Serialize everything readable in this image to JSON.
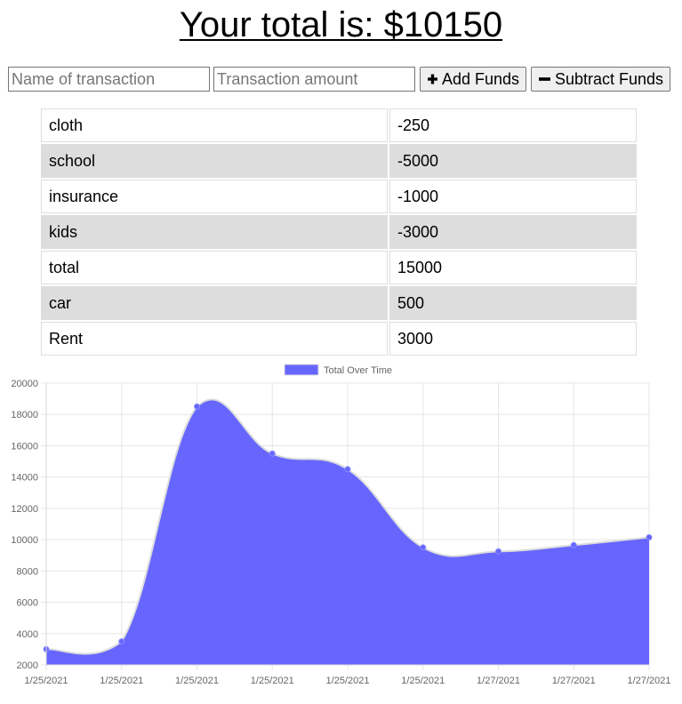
{
  "header": {
    "total_text": "Your total is: $10150"
  },
  "form": {
    "name_placeholder": "Name of transaction",
    "amount_placeholder": "Transaction amount",
    "add_label": "Add Funds",
    "subtract_label": "Subtract Funds",
    "add_icon": "plus-icon",
    "subtract_icon": "minus-icon"
  },
  "transactions": [
    {
      "name": "cloth",
      "value": "-250"
    },
    {
      "name": "school",
      "value": "-5000"
    },
    {
      "name": "insurance",
      "value": "-1000"
    },
    {
      "name": "kids",
      "value": "-3000"
    },
    {
      "name": "total",
      "value": "15000"
    },
    {
      "name": "car",
      "value": "500"
    },
    {
      "name": "Rent",
      "value": "3000"
    }
  ],
  "colors": {
    "row_stripe": "#dddddd",
    "series_fill": "#6666ff",
    "series_border": "#dcdcdc"
  },
  "chart_data": {
    "type": "area",
    "x": [
      "1/25/2021",
      "1/25/2021",
      "1/25/2021",
      "1/25/2021",
      "1/25/2021",
      "1/25/2021",
      "1/27/2021",
      "1/27/2021",
      "1/27/2021"
    ],
    "series": [
      {
        "name": "Total Over Time",
        "values": [
          3000,
          3500,
          18500,
          15500,
          14500,
          9500,
          9250,
          9650,
          10150
        ]
      }
    ],
    "ylim": [
      2000,
      20000
    ],
    "yticks": [
      2000,
      4000,
      6000,
      8000,
      10000,
      12000,
      14000,
      16000,
      18000,
      20000
    ],
    "grid": true,
    "legend": "top"
  }
}
